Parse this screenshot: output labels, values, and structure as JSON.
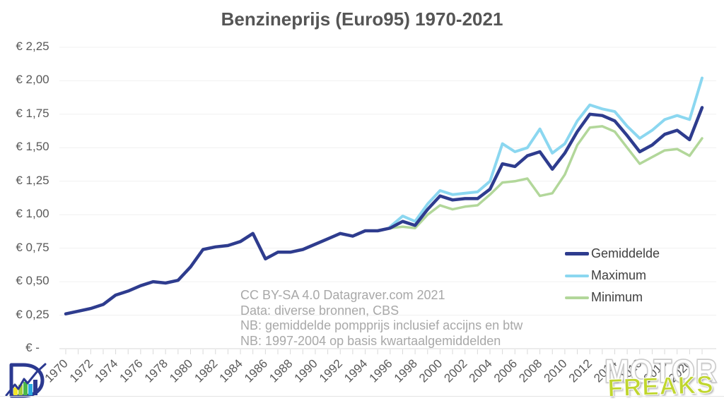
{
  "title": "Benzineprijs (Euro95) 1970-2021",
  "y_axis": {
    "labels": [
      {
        "value": 2.25,
        "label": "€ 2,25"
      },
      {
        "value": 2.0,
        "label": "€ 2,00"
      },
      {
        "value": 1.75,
        "label": "€ 1,75"
      },
      {
        "value": 1.5,
        "label": "€ 1,50"
      },
      {
        "value": 1.25,
        "label": "€ 1,25"
      },
      {
        "value": 1.0,
        "label": "€ 1,00"
      },
      {
        "value": 0.75,
        "label": "€ 0,75"
      },
      {
        "value": 0.5,
        "label": "€ 0,50"
      },
      {
        "value": 0.25,
        "label": "€ 0,25"
      },
      {
        "value": 0.0,
        "label": "€ -"
      }
    ]
  },
  "x_axis": {
    "start_year": 1970,
    "end_year": 2021,
    "label_years": [
      1970,
      1972,
      1974,
      1976,
      1978,
      1980,
      1982,
      1984,
      1986,
      1988,
      1990,
      1992,
      1994,
      1996,
      1998,
      2000,
      2002,
      2004,
      2006,
      2008,
      2010,
      2012,
      2014,
      2016,
      2018,
      2020
    ]
  },
  "legend": {
    "items": [
      {
        "label": "Gemiddelde",
        "color": "#2e3c8e"
      },
      {
        "label": "Maximum",
        "color": "#8bd7f0"
      },
      {
        "label": "Minimum",
        "color": "#b2d79a"
      }
    ]
  },
  "annotation": {
    "lines": [
      "CC BY-SA 4.0 Datagraver.com 2021",
      "Data: diverse bronnen, CBS",
      "NB: gemiddelde pompprijs inclusief accijns en btw",
      "NB: 1997-2004 op basis kwartaalgemiddelden"
    ]
  },
  "watermark": {
    "line1": "MOTOR",
    "line2": "FREAKS"
  },
  "colors": {
    "gemiddelde": "#2e3c8e",
    "maximum": "#8bd7f0",
    "minimum": "#b2d79a",
    "grid": "#f0f0f0",
    "axis": "#d9d9d9",
    "axis_text": "#595959",
    "title_text": "#555555",
    "annotation_text": "#a8a8a8",
    "freaks_lime": "#c0d62f"
  },
  "chart_data": {
    "type": "line",
    "title": "Benzineprijs (Euro95) 1970-2021",
    "xlabel": "",
    "ylabel": "",
    "x_range": [
      1970,
      2021
    ],
    "ylim": [
      0,
      2.25
    ],
    "y_tick_step": 0.25,
    "currency": "EUR",
    "grid": "horizontal",
    "legend_position": "right-middle",
    "series": [
      {
        "name": "Gemiddelde",
        "color": "#2e3c8e",
        "stroke_width": 4.5,
        "start_year": 1970,
        "values": [
          0.26,
          0.28,
          0.3,
          0.33,
          0.4,
          0.43,
          0.47,
          0.5,
          0.49,
          0.51,
          0.61,
          0.74,
          0.76,
          0.77,
          0.8,
          0.86,
          0.67,
          0.72,
          0.72,
          0.74,
          0.78,
          0.82,
          0.86,
          0.84,
          0.88,
          0.88,
          0.9,
          0.95,
          0.92,
          1.04,
          1.14,
          1.11,
          1.12,
          1.12,
          1.19,
          1.38,
          1.36,
          1.44,
          1.47,
          1.34,
          1.46,
          1.62,
          1.75,
          1.74,
          1.7,
          1.59,
          1.47,
          1.52,
          1.6,
          1.63,
          1.56,
          1.8
        ]
      },
      {
        "name": "Maximum",
        "color": "#8bd7f0",
        "stroke_width": 4,
        "start_year": 1996,
        "values": [
          0.91,
          0.99,
          0.95,
          1.08,
          1.18,
          1.15,
          1.16,
          1.17,
          1.25,
          1.53,
          1.47,
          1.5,
          1.64,
          1.46,
          1.53,
          1.7,
          1.82,
          1.79,
          1.77,
          1.66,
          1.57,
          1.63,
          1.71,
          1.74,
          1.71,
          2.02
        ]
      },
      {
        "name": "Minimum",
        "color": "#b2d79a",
        "stroke_width": 3.5,
        "start_year": 1996,
        "values": [
          0.9,
          0.91,
          0.9,
          1.0,
          1.07,
          1.04,
          1.06,
          1.07,
          1.15,
          1.24,
          1.25,
          1.27,
          1.14,
          1.16,
          1.3,
          1.52,
          1.65,
          1.66,
          1.62,
          1.5,
          1.38,
          1.43,
          1.48,
          1.49,
          1.44,
          1.57
        ]
      }
    ]
  }
}
